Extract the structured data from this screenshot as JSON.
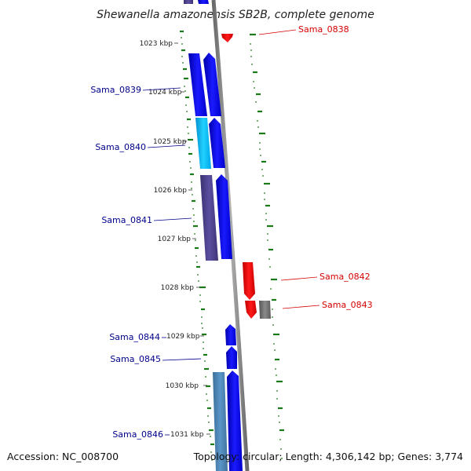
{
  "title": "Shewanella amazonensis SB2B, complete genome",
  "footer": {
    "accession": "Accession: NC_008700",
    "topology": "Topology: circular; Length: 4,306,142 bp; Genes: 3,774"
  },
  "kbp_labels": [
    "1023 kbp",
    "1024 kbp",
    "1025 kbp",
    "1026 kbp",
    "1027 kbp",
    "1028 kbp",
    "1029 kbp",
    "1030 kbp",
    "1031 kbp"
  ],
  "gene_labels": [
    {
      "name": "Sama_0838",
      "side": "right",
      "color": "#d40000"
    },
    {
      "name": "Sama_0839",
      "side": "left",
      "color": "#00008b"
    },
    {
      "name": "Sama_0840",
      "side": "left",
      "color": "#00008b"
    },
    {
      "name": "Sama_0841",
      "side": "left",
      "color": "#00008b"
    },
    {
      "name": "Sama_0842",
      "side": "right",
      "color": "#d40000"
    },
    {
      "name": "Sama_0843",
      "side": "right",
      "color": "#d40000"
    },
    {
      "name": "Sama_0844",
      "side": "left",
      "color": "#00008b"
    },
    {
      "name": "Sama_0845",
      "side": "left",
      "color": "#00008b"
    },
    {
      "name": "Sama_0846",
      "side": "left",
      "color": "#00008b"
    }
  ],
  "colors": {
    "forward_gene": "#0000ee",
    "reverse_gene": "#ee0000",
    "cyan_gene": "#00b8f0",
    "purple_gene": "#4a3f8c",
    "steel_gene": "#4682b4",
    "gray_gene": "#707070",
    "backbone": "#8c8c8c",
    "gc_skew": "#1a7a1a"
  }
}
